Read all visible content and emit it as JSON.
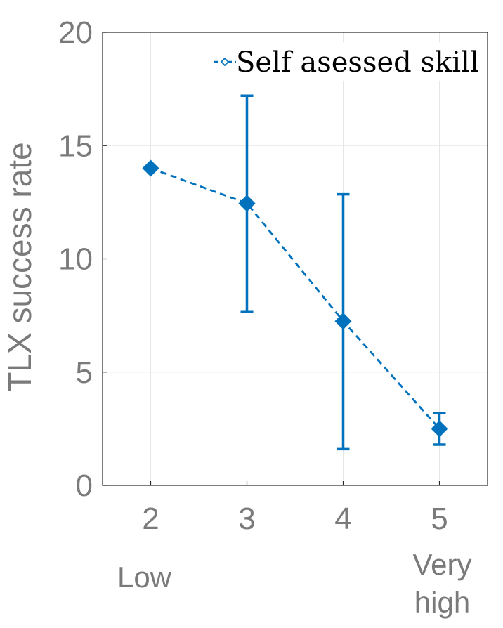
{
  "chart_data": {
    "type": "line",
    "title": "",
    "xlabel": "",
    "ylabel": "TLX success rate",
    "x": [
      2,
      3,
      4,
      5
    ],
    "xlim": [
      1.5,
      5.5
    ],
    "ylim": [
      0,
      20
    ],
    "xticks": [
      2,
      3,
      4,
      5
    ],
    "yticks": [
      0,
      5,
      10,
      15,
      20
    ],
    "x_tick_labels": [
      "2",
      "3",
      "4",
      "5"
    ],
    "y_tick_labels": [
      "0",
      "5",
      "10",
      "15",
      "20"
    ],
    "x_annotations": [
      {
        "x": 2,
        "lines": [
          "Low"
        ]
      },
      {
        "x": 5,
        "lines": [
          "Very",
          "high"
        ]
      }
    ],
    "grid": true,
    "legend_position": "top-right",
    "series": [
      {
        "name": "Self asessed skill",
        "values": [
          14.0,
          12.45,
          7.25,
          2.5
        ],
        "error_low": [
          14.0,
          7.65,
          1.6,
          1.8
        ],
        "error_high": [
          14.0,
          17.2,
          12.85,
          3.2
        ],
        "color": "#0072BD",
        "line_style": "dashed",
        "marker": "diamond"
      }
    ]
  }
}
